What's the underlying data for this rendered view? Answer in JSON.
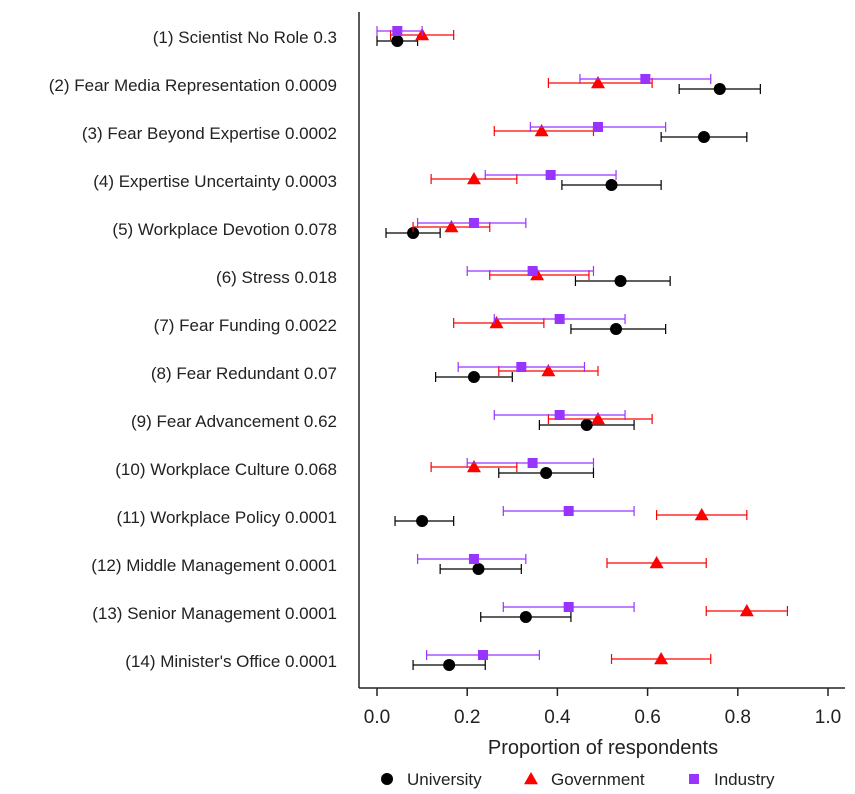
{
  "chart_data": {
    "type": "scatter",
    "xlabel": "Proportion of respondents",
    "xlim": [
      0.0,
      1.0
    ],
    "xticks": [
      "0.0",
      "0.2",
      "0.4",
      "0.6",
      "0.8",
      "1.0"
    ],
    "categories": [
      "(1) Scientist No Role 0.3",
      "(2) Fear Media Representation 0.0009",
      "(3) Fear Beyond Expertise 0.0002",
      "(4) Expertise Uncertainty 0.0003",
      "(5) Workplace Devotion 0.078",
      "(6) Stress 0.018",
      "(7) Fear Funding 0.0022",
      "(8) Fear Redundant 0.07",
      "(9) Fear Advancement 0.62",
      "(10) Workplace Culture 0.068",
      "(11) Workplace Policy 0.0001",
      "(12) Middle Management 0.0001",
      "(13) Senior Management 0.0001",
      "(14) Minister's Office 0.0001"
    ],
    "series": [
      {
        "name": "University",
        "color": "#000000",
        "marker": "circle",
        "values": [
          0.045,
          0.76,
          0.725,
          0.52,
          0.08,
          0.54,
          0.53,
          0.215,
          0.465,
          0.375,
          0.1,
          0.225,
          0.33,
          0.16
        ],
        "lower": [
          0.0,
          0.67,
          0.63,
          0.41,
          0.02,
          0.44,
          0.43,
          0.13,
          0.36,
          0.27,
          0.04,
          0.14,
          0.23,
          0.08
        ],
        "upper": [
          0.09,
          0.85,
          0.82,
          0.63,
          0.14,
          0.65,
          0.64,
          0.3,
          0.57,
          0.48,
          0.17,
          0.32,
          0.43,
          0.24
        ]
      },
      {
        "name": "Government",
        "color": "#ff0000",
        "marker": "triangle",
        "values": [
          0.1,
          0.49,
          0.365,
          0.215,
          0.165,
          0.355,
          0.265,
          0.38,
          0.49,
          0.215,
          0.72,
          0.62,
          0.82,
          0.63
        ],
        "lower": [
          0.03,
          0.38,
          0.26,
          0.12,
          0.08,
          0.25,
          0.17,
          0.27,
          0.38,
          0.12,
          0.62,
          0.51,
          0.73,
          0.52
        ],
        "upper": [
          0.17,
          0.61,
          0.48,
          0.31,
          0.25,
          0.47,
          0.37,
          0.49,
          0.61,
          0.31,
          0.82,
          0.73,
          0.91,
          0.74
        ]
      },
      {
        "name": "Industry",
        "color": "#9933ff",
        "marker": "square",
        "values": [
          0.045,
          0.595,
          0.49,
          0.385,
          0.215,
          0.345,
          0.405,
          0.32,
          0.405,
          0.345,
          0.425,
          0.215,
          0.425,
          0.235
        ],
        "lower": [
          0.0,
          0.45,
          0.34,
          0.24,
          0.09,
          0.2,
          0.26,
          0.18,
          0.26,
          0.2,
          0.28,
          0.09,
          0.28,
          0.11
        ],
        "upper": [
          0.1,
          0.74,
          0.64,
          0.53,
          0.33,
          0.48,
          0.55,
          0.46,
          0.55,
          0.48,
          0.57,
          0.33,
          0.57,
          0.36
        ]
      }
    ],
    "legend_position": "bottom"
  }
}
